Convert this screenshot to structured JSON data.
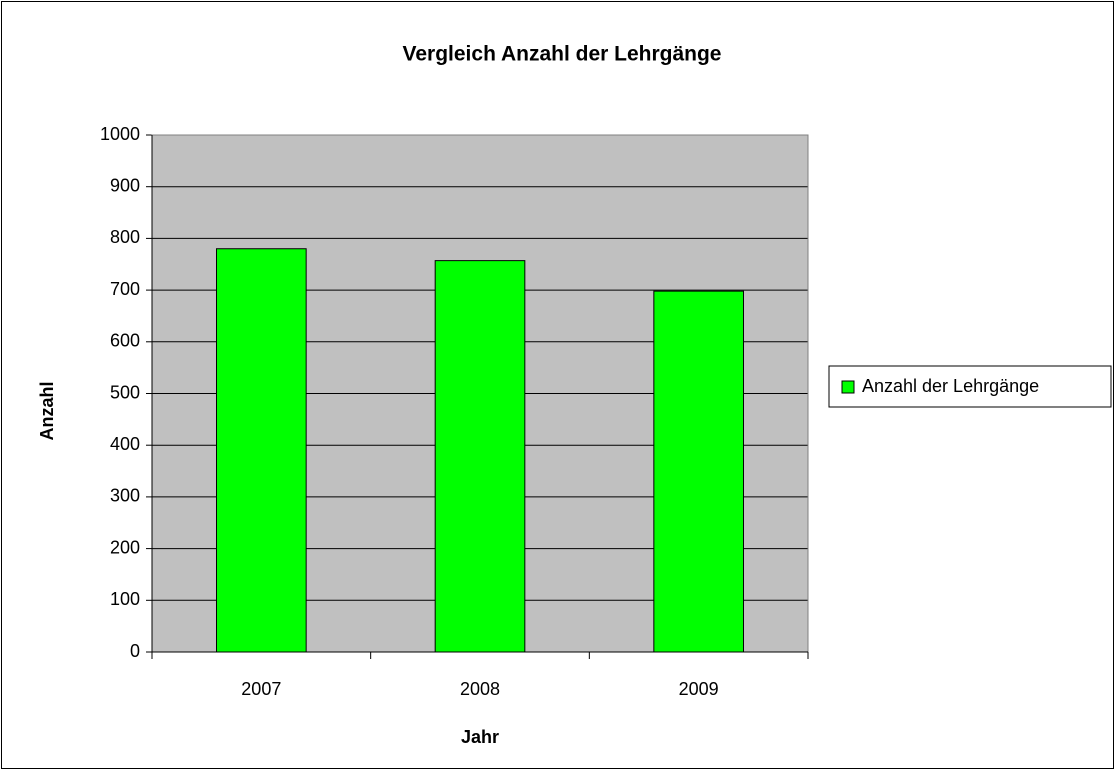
{
  "chart_data": {
    "type": "bar",
    "title": "Vergleich Anzahl der Lehrgänge",
    "x_label": "Jahr",
    "y_label": "Anzahl",
    "categories": [
      "2007",
      "2008",
      "2009"
    ],
    "series": [
      {
        "name": "Anzahl der Lehrgänge",
        "color": "#00ff00",
        "values": [
          780,
          757,
          698
        ]
      }
    ],
    "ylim": [
      0,
      1000
    ],
    "yticks": [
      0,
      100,
      200,
      300,
      400,
      500,
      600,
      700,
      800,
      900,
      1000
    ],
    "grid": true,
    "legend": "right",
    "plot_background": "#c0c0c0"
  }
}
